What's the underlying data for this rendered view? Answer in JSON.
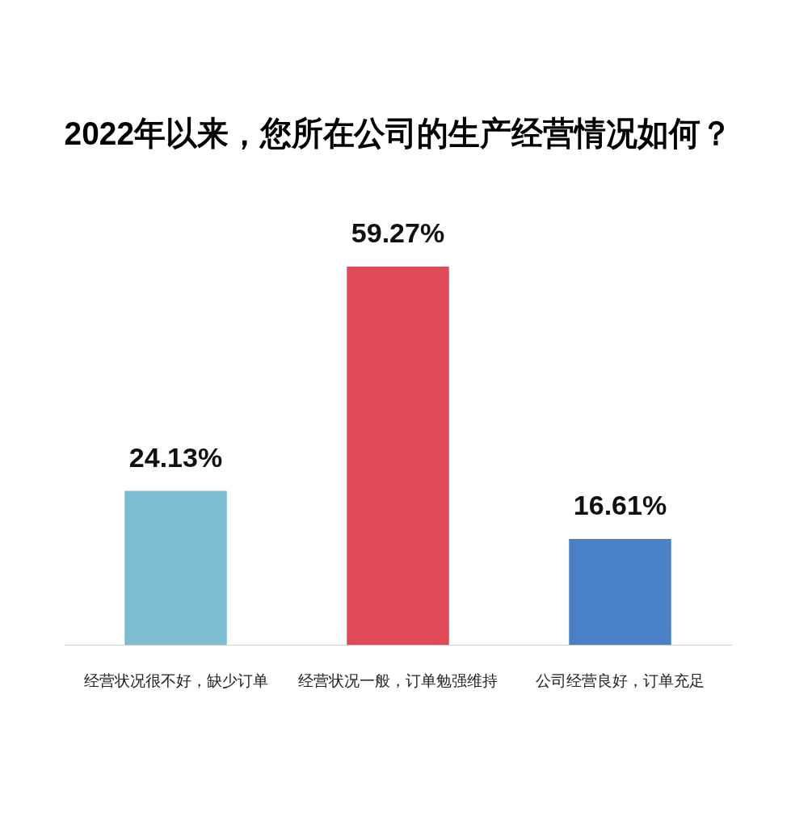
{
  "chart_data": {
    "type": "bar",
    "title": "2022年以来，您所在公司的生产经营情况如何？",
    "categories": [
      "经营状况很不好，缺少订单",
      "经营状况一般，订单勉强维持",
      "公司经营良好，订单充足"
    ],
    "values": [
      24.13,
      59.27,
      16.61
    ],
    "colors": [
      "#7dbdd2",
      "#e04b57",
      "#4a80c6"
    ],
    "value_labels": [
      "24.13%",
      "59.27%",
      "16.61%"
    ],
    "grid": false,
    "tick_labels": "x"
  }
}
